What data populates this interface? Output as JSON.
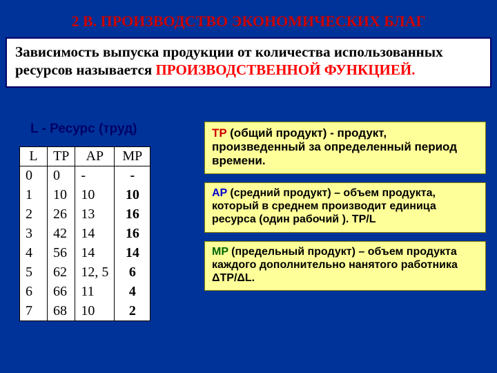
{
  "title": "2 В. ПРОИЗВОДСТВО ЭКОНОМИЧЕСКИХ БЛАГ",
  "intro": {
    "plain1": "  Зависимость выпуска продукции от количества использованных   ресурсов называется  ",
    "highlight": "ПРОИЗВОДСТВЕННОЙ ФУНКЦИЕЙ.",
    "highlight_color": "#ff0000",
    "box_bg": "#ffffff",
    "box_border": "#000066"
  },
  "l_label": "L  -  Ресурс  (труд)",
  "table": {
    "columns": [
      "L",
      "TP",
      "AP",
      "MP"
    ],
    "rows": [
      [
        "0",
        "0",
        "-",
        "-"
      ],
      [
        "1",
        "10",
        "10",
        "10"
      ],
      [
        "2",
        "26",
        "13",
        "16"
      ],
      [
        "3",
        "42",
        "14",
        "16"
      ],
      [
        "4",
        "56",
        "14",
        "14"
      ],
      [
        "5",
        "62",
        "12, 5",
        "6"
      ],
      [
        "6",
        "66",
        "11",
        "4"
      ],
      [
        "7",
        "68",
        "10",
        "2"
      ]
    ],
    "bg": "#ffffff",
    "border_color": "#000000",
    "cell_fontsize": 20,
    "mp_fontsize": 17
  },
  "defs": {
    "box_bg": "#ffff99",
    "box_border": "#808000",
    "tp": {
      "key": "TP",
      "key_color": "#cc0000",
      "head": " (общий продукт)",
      "body": " - продукт, произведенный за определенный период  времени."
    },
    "ap": {
      "key": "AP",
      "key_color": "#0000cc",
      "head": " (средний продукт)",
      "body": "  – объем продукта, который в среднем производит единица ресурса (один рабочий ). TP/L"
    },
    "mp": {
      "key": "MP",
      "key_color": "#006600",
      "head": " (предельный продукт)",
      "body": " – объем продукта  каждого дополнительно нанятого работника ΔTP/ΔL."
    }
  },
  "colors": {
    "page_bg": "#003399",
    "title_color": "#cc0000"
  }
}
